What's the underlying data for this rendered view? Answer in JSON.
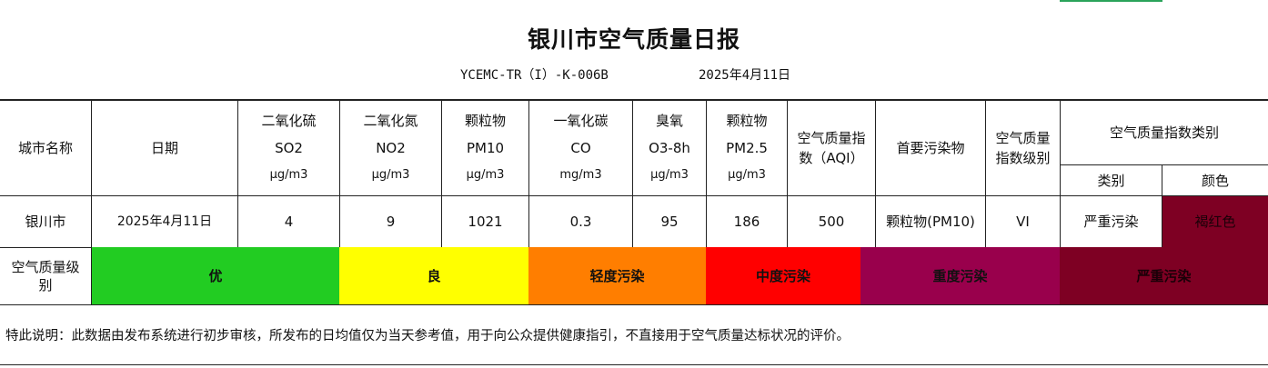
{
  "report": {
    "title": "银川市空气质量日报",
    "code": "YCEMC-TR（I）-K-006B",
    "date": "2025年4月11日"
  },
  "headers": {
    "city": "城市名称",
    "date": "日期",
    "so2": {
      "name": "二氧化硫",
      "symbol": "SO2",
      "unit": "μg/m3"
    },
    "no2": {
      "name": "二氧化氮",
      "symbol": "NO2",
      "unit": "μg/m3"
    },
    "pm10": {
      "name": "颗粒物",
      "symbol": "PM10",
      "unit": "μg/m3"
    },
    "co": {
      "name": "一氧化碳",
      "symbol": "CO",
      "unit": "mg/m3"
    },
    "o3": {
      "name": "臭氧",
      "symbol": "O3-8h",
      "unit": "μg/m3"
    },
    "pm25": {
      "name": "颗粒物",
      "symbol": "PM2.5",
      "unit": "μg/m3"
    },
    "aqi": "空气质量指数（AQI）",
    "primary": "首要污染物",
    "aqi_level": "空气质量指数级别",
    "category_group": "空气质量指数类别",
    "category": "类别",
    "color": "颜色"
  },
  "row": {
    "city": "银川市",
    "date": "2025年4月11日",
    "so2": "4",
    "no2": "9",
    "pm10": "1021",
    "co": "0.3",
    "o3": "95",
    "pm25": "186",
    "aqi": "500",
    "primary": "颗粒物(PM10)",
    "aqi_level": "VI",
    "category": "严重污染",
    "color": "褐红色"
  },
  "levels": {
    "label": "空气质量级别",
    "items": [
      {
        "label": "优",
        "color": "#22cc22"
      },
      {
        "label": "良",
        "color": "#ffff00"
      },
      {
        "label": "轻度污染",
        "color": "#ff7e00"
      },
      {
        "label": "中度污染",
        "color": "#ff0000"
      },
      {
        "label": "重度污染",
        "color": "#99004c"
      },
      {
        "label": "严重污染",
        "color": "#7e0023"
      }
    ]
  },
  "colors": {
    "row_category_bg": "#7e0023",
    "accent": "#2aa35a"
  },
  "note": "特此说明：此数据由发布系统进行初步审核，所发布的日均值仅为当天参考值，用于向公众提供健康指引，不直接用于空气质量达标状况的评价。"
}
